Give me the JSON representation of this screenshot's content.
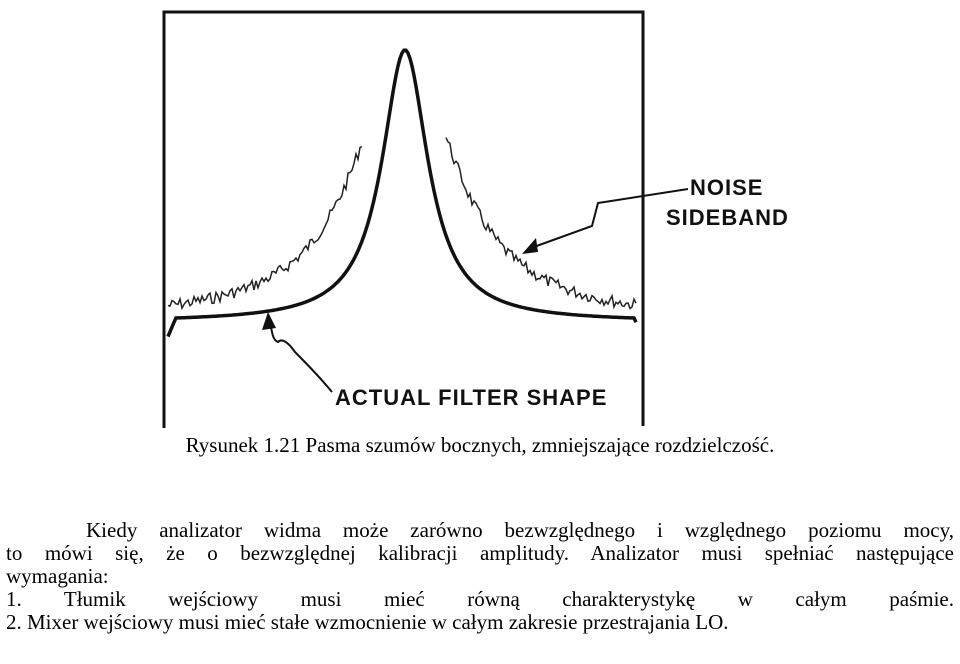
{
  "figure": {
    "labels": {
      "noise_sideband": [
        "NOISE",
        "SIDEBAND"
      ],
      "actual_filter_shape": "ACTUAL FILTER SHAPE"
    },
    "caption": "Rysunek 1.21 Pasma szumów bocznych, zmniejszające rozdzielczość."
  },
  "body": {
    "paragraph": [
      "Kiedy analizator widma może zarówno bezwzględnego i względnego poziomu mocy,",
      "to mówi się, że o bezwzględnej kalibracji amplitudy. Analizator musi spełniać następujące",
      "wymagania:"
    ],
    "list": [
      "1. Tłumik wejściowy musi mieć równą charakterystykę w całym paśmie.",
      "2. Mixer wejściowy musi mieć stałe wzmocnienie w całym zakresie przestrajania LO."
    ]
  }
}
